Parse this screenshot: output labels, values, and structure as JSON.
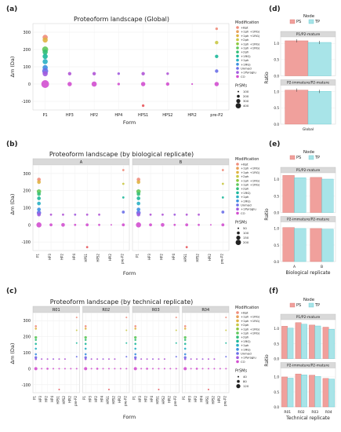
{
  "panel_letters": [
    "(a)",
    "(b)",
    "(c)",
    "(d)",
    "(e)",
    "(f)"
  ],
  "chart_data": [
    {
      "id": "a",
      "type": "scatter",
      "title": "Proteoform landscape (Global)",
      "xlabel": "Form",
      "ylabel": "Δm (Da)",
      "categories": [
        "P1",
        "HP3",
        "HP2",
        "HP4",
        "HPS1",
        "HPS2",
        "HPI2",
        "pre-P2"
      ],
      "ylim": [
        -150,
        350
      ],
      "yticks": [
        -100,
        0,
        100,
        200,
        300
      ],
      "facets": [
        ""
      ],
      "legend": {
        "modification_title": "Modification",
        "modifications": [
          "+8pt",
          "+1ph +1RG)",
          "+1ph +1RG)",
          "+2ph",
          "+1ph +1RG)",
          "+1ph +1RG)",
          "+2ph",
          "+1RG)",
          "+1ph",
          "+1RG)",
          "Unmod",
          "+1Pyroglu",
          "CO"
        ],
        "size_title": "PrSMs",
        "sizes": [
          "100",
          "200",
          "300",
          "400"
        ]
      },
      "points": [
        {
          "x": "P1",
          "y": 270,
          "c": "#f08c7a",
          "s": 6
        },
        {
          "x": "P1",
          "y": 255,
          "c": "#e0b341",
          "s": 6
        },
        {
          "x": "P1",
          "y": 200,
          "c": "#5fc85a",
          "s": 7
        },
        {
          "x": "P1",
          "y": 185,
          "c": "#33bf77",
          "s": 6
        },
        {
          "x": "P1",
          "y": 160,
          "c": "#1cb89a",
          "s": 6
        },
        {
          "x": "P1",
          "y": 130,
          "c": "#2ab0c4",
          "s": 6
        },
        {
          "x": "P1",
          "y": 95,
          "c": "#3b8fe0",
          "s": 6
        },
        {
          "x": "P1",
          "y": 75,
          "c": "#6a6fe8",
          "s": 7
        },
        {
          "x": "P1",
          "y": 60,
          "c": "#a15bde",
          "s": 6
        },
        {
          "x": "P1",
          "y": 0,
          "c": "#d24fd0",
          "s": 9
        },
        {
          "x": "HP3",
          "y": 60,
          "c": "#b057d6",
          "s": 4
        },
        {
          "x": "HP3",
          "y": 0,
          "c": "#d24fd0",
          "s": 5
        },
        {
          "x": "HP2",
          "y": 60,
          "c": "#b057d6",
          "s": 4
        },
        {
          "x": "HP2",
          "y": 0,
          "c": "#d24fd0",
          "s": 6
        },
        {
          "x": "HP4",
          "y": 60,
          "c": "#a15bde",
          "s": 3
        },
        {
          "x": "HP4",
          "y": 0,
          "c": "#d24fd0",
          "s": 3
        },
        {
          "x": "HPS1",
          "y": 60,
          "c": "#b057d6",
          "s": 4
        },
        {
          "x": "HPS1",
          "y": 0,
          "c": "#d24fd0",
          "s": 5
        },
        {
          "x": "HPS1",
          "y": -125,
          "c": "#e8575c",
          "s": 3
        },
        {
          "x": "HPS2",
          "y": 60,
          "c": "#b057d6",
          "s": 3
        },
        {
          "x": "HPS2",
          "y": 0,
          "c": "#d24fd0",
          "s": 4
        },
        {
          "x": "HPI2",
          "y": 0,
          "c": "#d24fd0",
          "s": 2
        },
        {
          "x": "pre-P2",
          "y": 320,
          "c": "#f08c7a",
          "s": 3
        },
        {
          "x": "pre-P2",
          "y": 240,
          "c": "#c9c845",
          "s": 4
        },
        {
          "x": "pre-P2",
          "y": 160,
          "c": "#1cb89a",
          "s": 4
        },
        {
          "x": "pre-P2",
          "y": 75,
          "c": "#6a6fe8",
          "s": 4
        },
        {
          "x": "pre-P2",
          "y": 0,
          "c": "#d24fd0",
          "s": 5
        }
      ]
    },
    {
      "id": "b",
      "type": "scatter",
      "title": "Proteoform landscape (by biological replicate)",
      "xlabel": "Form",
      "ylabel": "Δm (Da)",
      "categories": [
        "P1",
        "HP3",
        "HP2",
        "HP4",
        "HPS1",
        "HPS2",
        "HPI2",
        "pre-P2"
      ],
      "ylim": [
        -150,
        350
      ],
      "yticks": [
        -100,
        0,
        100,
        200,
        300
      ],
      "facets": [
        "A",
        "B"
      ],
      "legend": {
        "modification_title": "Modification",
        "modifications": [
          "+8pt",
          "+1ph +1RG)",
          "+1ph +1RG)",
          "+2ph",
          "+1ph +1RG)",
          "+1ph +1RG)",
          "+2ph",
          "+1RG)",
          "+1ph",
          "+1RG)",
          "Unmod",
          "+1Pyroglu",
          "CO"
        ],
        "size_title": "PrSMs",
        "sizes": [
          "50",
          "100",
          "150",
          "200"
        ]
      },
      "points": [
        {
          "x": "P1",
          "y": 265,
          "c": "#f08c7a",
          "s": 5
        },
        {
          "x": "P1",
          "y": 250,
          "c": "#e0b341",
          "s": 5
        },
        {
          "x": "P1",
          "y": 195,
          "c": "#5fc85a",
          "s": 6
        },
        {
          "x": "P1",
          "y": 180,
          "c": "#33bf77",
          "s": 5
        },
        {
          "x": "P1",
          "y": 155,
          "c": "#1cb89a",
          "s": 5
        },
        {
          "x": "P1",
          "y": 125,
          "c": "#2ab0c4",
          "s": 5
        },
        {
          "x": "P1",
          "y": 90,
          "c": "#3b8fe0",
          "s": 5
        },
        {
          "x": "P1",
          "y": 70,
          "c": "#6a6fe8",
          "s": 6
        },
        {
          "x": "P1",
          "y": 60,
          "c": "#a15bde",
          "s": 5
        },
        {
          "x": "P1",
          "y": 0,
          "c": "#d24fd0",
          "s": 7
        },
        {
          "x": "HP3",
          "y": 60,
          "c": "#b057d6",
          "s": 3
        },
        {
          "x": "HP3",
          "y": 0,
          "c": "#d24fd0",
          "s": 4
        },
        {
          "x": "HP2",
          "y": 60,
          "c": "#b057d6",
          "s": 3
        },
        {
          "x": "HP2",
          "y": 0,
          "c": "#d24fd0",
          "s": 5
        },
        {
          "x": "HP4",
          "y": 60,
          "c": "#a15bde",
          "s": 3
        },
        {
          "x": "HP4",
          "y": 0,
          "c": "#d24fd0",
          "s": 3
        },
        {
          "x": "HPS1",
          "y": 60,
          "c": "#b057d6",
          "s": 3
        },
        {
          "x": "HPS1",
          "y": 0,
          "c": "#d24fd0",
          "s": 4
        },
        {
          "x": "HPS1",
          "y": -130,
          "c": "#e8575c",
          "s": 3
        },
        {
          "x": "HPS2",
          "y": 60,
          "c": "#b057d6",
          "s": 3
        },
        {
          "x": "HPS2",
          "y": 0,
          "c": "#d24fd0",
          "s": 3
        },
        {
          "x": "HPI2",
          "y": 0,
          "c": "#d24fd0",
          "s": 2
        },
        {
          "x": "pre-P2",
          "y": 320,
          "c": "#f08c7a",
          "s": 3
        },
        {
          "x": "pre-P2",
          "y": 240,
          "c": "#c9c845",
          "s": 3
        },
        {
          "x": "pre-P2",
          "y": 160,
          "c": "#1cb89a",
          "s": 3
        },
        {
          "x": "pre-P2",
          "y": 75,
          "c": "#6a6fe8",
          "s": 4
        },
        {
          "x": "pre-P2",
          "y": 0,
          "c": "#d24fd0",
          "s": 4
        }
      ]
    },
    {
      "id": "c",
      "type": "scatter",
      "title": "Proteoform landscape (by technical replicate)",
      "xlabel": "Form",
      "ylabel": "Δm (Da)",
      "categories": [
        "P1",
        "HP3",
        "HP2",
        "HP4",
        "HPS1",
        "HPS2",
        "HPI2",
        "pre-P2"
      ],
      "ylim": [
        -150,
        350
      ],
      "yticks": [
        -100,
        0,
        100,
        200,
        300
      ],
      "facets": [
        "R01",
        "R02",
        "R03",
        "R04"
      ],
      "legend": {
        "modification_title": "Modification",
        "modifications": [
          "+8pt",
          "+1ph +1RG)",
          "+1ph +1RG)",
          "+2ph",
          "+1ph +1RG)",
          "+1ph +1RG)",
          "+2ph",
          "+1RG)",
          "+1ph",
          "+1RG)",
          "Unmod",
          "+1Pyroglu",
          "CO"
        ],
        "size_title": "PrSMs",
        "sizes": [
          "40",
          "80",
          "120"
        ]
      },
      "points": [
        {
          "x": "P1",
          "y": 265,
          "c": "#f08c7a",
          "s": 4
        },
        {
          "x": "P1",
          "y": 250,
          "c": "#e0b341",
          "s": 4
        },
        {
          "x": "P1",
          "y": 195,
          "c": "#5fc85a",
          "s": 5
        },
        {
          "x": "P1",
          "y": 180,
          "c": "#33bf77",
          "s": 4
        },
        {
          "x": "P1",
          "y": 155,
          "c": "#1cb89a",
          "s": 4
        },
        {
          "x": "P1",
          "y": 125,
          "c": "#2ab0c4",
          "s": 4
        },
        {
          "x": "P1",
          "y": 90,
          "c": "#3b8fe0",
          "s": 4
        },
        {
          "x": "P1",
          "y": 70,
          "c": "#6a6fe8",
          "s": 5
        },
        {
          "x": "P1",
          "y": 60,
          "c": "#a15bde",
          "s": 4
        },
        {
          "x": "P1",
          "y": 0,
          "c": "#d24fd0",
          "s": 6
        },
        {
          "x": "HP3",
          "y": 60,
          "c": "#b057d6",
          "s": 3
        },
        {
          "x": "HP3",
          "y": 0,
          "c": "#d24fd0",
          "s": 3
        },
        {
          "x": "HP2",
          "y": 60,
          "c": "#b057d6",
          "s": 3
        },
        {
          "x": "HP2",
          "y": 0,
          "c": "#d24fd0",
          "s": 4
        },
        {
          "x": "HP4",
          "y": 60,
          "c": "#a15bde",
          "s": 2
        },
        {
          "x": "HP4",
          "y": 0,
          "c": "#d24fd0",
          "s": 2
        },
        {
          "x": "HPS1",
          "y": 60,
          "c": "#b057d6",
          "s": 3
        },
        {
          "x": "HPS1",
          "y": 0,
          "c": "#d24fd0",
          "s": 3
        },
        {
          "x": "HPS1",
          "y": -130,
          "c": "#e8575c",
          "s": 2
        },
        {
          "x": "HPS2",
          "y": 60,
          "c": "#b057d6",
          "s": 2
        },
        {
          "x": "HPS2",
          "y": 0,
          "c": "#d24fd0",
          "s": 3
        },
        {
          "x": "HPI2",
          "y": 0,
          "c": "#d24fd0",
          "s": 2
        },
        {
          "x": "pre-P2",
          "y": 320,
          "c": "#f08c7a",
          "s": 2
        },
        {
          "x": "pre-P2",
          "y": 240,
          "c": "#c9c845",
          "s": 3
        },
        {
          "x": "pre-P2",
          "y": 160,
          "c": "#1cb89a",
          "s": 3
        },
        {
          "x": "pre-P2",
          "y": 75,
          "c": "#6a6fe8",
          "s": 3
        },
        {
          "x": "pre-P2",
          "y": 0,
          "c": "#d24fd0",
          "s": 3
        }
      ]
    },
    {
      "id": "d",
      "type": "bar",
      "legend_title": "Node",
      "series": [
        {
          "name": "PS",
          "color": "#f0a09c",
          "stroke": "#d9706a"
        },
        {
          "name": "TP",
          "color": "#a8e4e8",
          "stroke": "#5ec8d0"
        }
      ],
      "facets": [
        "P1/P2-mature",
        "P2-immature/P2-mature"
      ],
      "categories": [
        "Global"
      ],
      "values": [
        [
          [
            1.08
          ],
          [
            1.03
          ]
        ],
        [
          [
            1.05
          ],
          [
            1.01
          ]
        ]
      ],
      "errors": true,
      "ylabel": "Ratio",
      "xlabel": "",
      "ylim": [
        0,
        1.2
      ],
      "yticks": [
        "0.0",
        "0.5",
        "1.0"
      ]
    },
    {
      "id": "e",
      "type": "bar",
      "legend_title": "Node",
      "series": [
        {
          "name": "PS",
          "color": "#f0a09c",
          "stroke": "#d9706a"
        },
        {
          "name": "TP",
          "color": "#a8e4e8",
          "stroke": "#5ec8d0"
        }
      ],
      "facets": [
        "P1/P2-mature",
        "P2-immature/P2-mature"
      ],
      "categories": [
        "A",
        "B"
      ],
      "values": [
        [
          [
            1.12,
            1.06
          ],
          [
            1.05,
            1.01
          ]
        ],
        [
          [
            1.03,
            1.0
          ],
          [
            1.0,
            0.98
          ]
        ]
      ],
      "errors": false,
      "ylabel": "Ratio",
      "xlabel": "Biological replicate",
      "ylim": [
        0,
        1.2
      ],
      "yticks": [
        "0.0",
        "0.5",
        "1.0"
      ]
    },
    {
      "id": "f",
      "type": "bar",
      "legend_title": "Node",
      "series": [
        {
          "name": "PS",
          "color": "#f0a09c",
          "stroke": "#d9706a"
        },
        {
          "name": "TP",
          "color": "#a8e4e8",
          "stroke": "#5ec8d0"
        }
      ],
      "facets": [
        "P1/P2-mature",
        "P2-immature/P2-mature"
      ],
      "categories": [
        "R01",
        "R02",
        "R03",
        "R04"
      ],
      "values": [
        [
          [
            1.08,
            1.2,
            1.12,
            1.05
          ],
          [
            1.02,
            1.15,
            1.09,
            0.98
          ]
        ],
        [
          [
            1.0,
            1.1,
            1.06,
            0.95
          ],
          [
            0.96,
            1.07,
            1.02,
            0.93
          ]
        ]
      ],
      "errors": false,
      "ylabel": "Ratio",
      "xlabel": "Technical replicate",
      "ylim": [
        0,
        1.3
      ],
      "yticks": [
        "0.0",
        "0.5",
        "1.0"
      ]
    }
  ]
}
